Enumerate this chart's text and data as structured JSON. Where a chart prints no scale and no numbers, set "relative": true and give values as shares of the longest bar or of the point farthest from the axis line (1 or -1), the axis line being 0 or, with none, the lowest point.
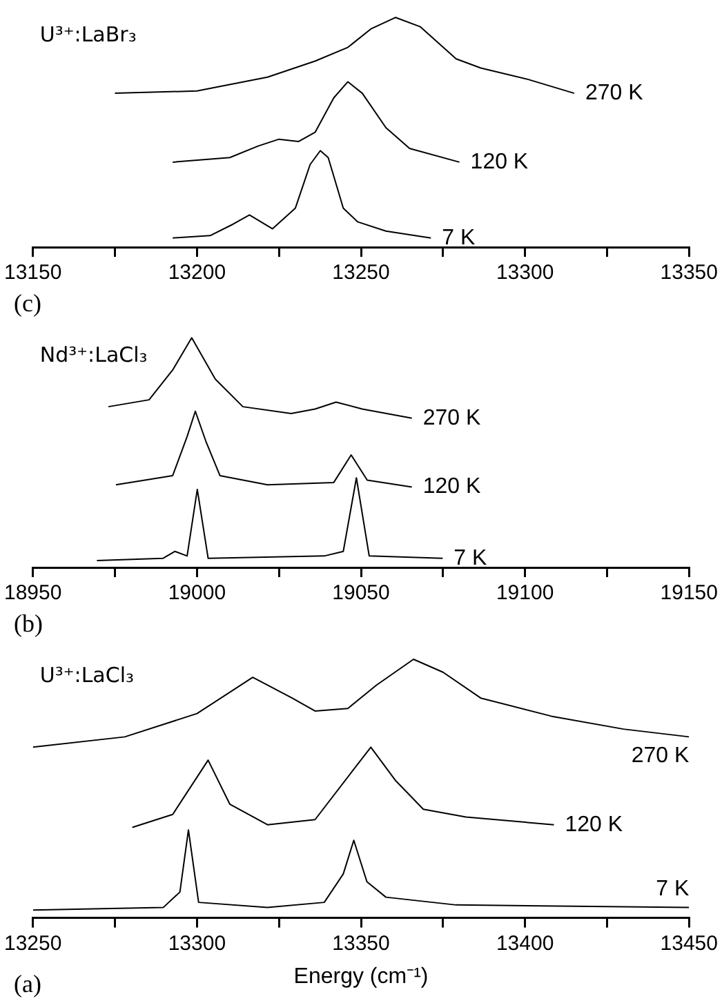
{
  "chart_data": [
    {
      "type": "line",
      "relative": true,
      "grid": false,
      "legend": false,
      "tick_labels": "x",
      "annotations": [
        "U³⁺:LaBr₃",
        "(c)"
      ],
      "xlim": [
        13150,
        13350
      ],
      "xticks": [
        13150,
        {
          "value": 13175,
          "label": null
        },
        13200,
        {
          "value": 13225,
          "label": null
        },
        13250,
        {
          "value": 13275,
          "label": null
        },
        13300,
        {
          "value": 13325,
          "label": null
        },
        13350
      ],
      "series": [
        {
          "name": "270 K",
          "color": "#000000",
          "x": [
            13175,
            13200,
            13221.5,
            13236,
            13246,
            13253,
            13260.5,
            13268,
            13279,
            13286.5,
            13301,
            13315
          ],
          "values": [
            0.67,
            0.68,
            0.74,
            0.81,
            0.87,
            0.95,
            1.0,
            0.96,
            0.82,
            0.78,
            0.73,
            0.67
          ]
        },
        {
          "name": "120 K",
          "color": "#000000",
          "x": [
            13192.6,
            13210,
            13218.6,
            13225,
            13231,
            13236,
            13241.7,
            13246,
            13250.4,
            13257.6,
            13264.8,
            13280
          ],
          "values": [
            0.37,
            0.39,
            0.44,
            0.47,
            0.46,
            0.5,
            0.65,
            0.72,
            0.67,
            0.52,
            0.43,
            0.37
          ]
        },
        {
          "name": "7 K",
          "color": "#000000",
          "x": [
            13192.6,
            13204,
            13211,
            13216,
            13223,
            13230,
            13234.5,
            13237.6,
            13240,
            13244.6,
            13249,
            13257.6,
            13271.3
          ],
          "values": [
            0.04,
            0.05,
            0.1,
            0.14,
            0.08,
            0.17,
            0.36,
            0.42,
            0.39,
            0.17,
            0.11,
            0.07,
            0.04
          ]
        }
      ]
    },
    {
      "type": "line",
      "relative": true,
      "grid": false,
      "legend": false,
      "tick_labels": "x",
      "annotations": [
        "Nd³⁺:LaCl₃",
        "(b)"
      ],
      "xlim": [
        18950,
        19150
      ],
      "xticks": [
        18950,
        {
          "value": 18975,
          "label": null
        },
        19000,
        {
          "value": 19025,
          "label": null
        },
        19050,
        {
          "value": 19075,
          "label": null
        },
        19100,
        {
          "value": 19125,
          "label": null
        },
        19150
      ],
      "series": [
        {
          "name": "270 K",
          "color": "#000000",
          "x": [
            18973,
            18985.4,
            18992.6,
            18998.4,
            19005.6,
            19014,
            19028.7,
            19036,
            19042.4,
            19050.4,
            19065.5
          ],
          "values": [
            0.7,
            0.73,
            0.86,
            1.0,
            0.82,
            0.7,
            0.67,
            0.69,
            0.72,
            0.69,
            0.65
          ]
        },
        {
          "name": "120 K",
          "color": "#000000",
          "x": [
            18975.3,
            18992.6,
            18997,
            18999.5,
            19002.7,
            19007,
            19021.5,
            19041.7,
            19047,
            19051.9,
            19065.5
          ],
          "values": [
            0.36,
            0.4,
            0.57,
            0.68,
            0.55,
            0.4,
            0.36,
            0.37,
            0.49,
            0.38,
            0.35
          ]
        },
        {
          "name": "7 K",
          "color": "#000000",
          "x": [
            18969.5,
            18989.7,
            18993.3,
            18997,
            19000.1,
            19003.4,
            19038.8,
            19044.6,
            19048.6,
            19052.5,
            19074.9
          ],
          "values": [
            0.03,
            0.04,
            0.07,
            0.05,
            0.34,
            0.04,
            0.05,
            0.07,
            0.39,
            0.05,
            0.04
          ]
        }
      ]
    },
    {
      "type": "line",
      "relative": true,
      "grid": false,
      "legend": false,
      "tick_labels": "x",
      "xlabel": "Energy (cm⁻¹)",
      "annotations": [
        "U³⁺:LaCl₃",
        "(a)"
      ],
      "xlim": [
        13250,
        13450
      ],
      "xticks": [
        13250,
        {
          "value": 13275,
          "label": null
        },
        13300,
        {
          "value": 13325,
          "label": null
        },
        13350,
        {
          "value": 13375,
          "label": null
        },
        13400,
        {
          "value": 13425,
          "label": null
        },
        13450
      ],
      "series": [
        {
          "name": "270 K",
          "color": "#000000",
          "x": [
            13250,
            13278,
            13300,
            13317,
            13329,
            13336,
            13346,
            13354.7,
            13366,
            13375,
            13386.5,
            13408,
            13430,
            13450
          ],
          "values": [
            0.66,
            0.7,
            0.79,
            0.93,
            0.85,
            0.8,
            0.81,
            0.9,
            1.0,
            0.95,
            0.85,
            0.78,
            0.73,
            0.7
          ]
        },
        {
          "name": "120 K",
          "color": "#000000",
          "x": [
            13280.3,
            13292.6,
            13303.4,
            13310,
            13321.5,
            13336,
            13347.5,
            13353,
            13360.6,
            13369,
            13382,
            13408.8
          ],
          "values": [
            0.35,
            0.4,
            0.61,
            0.44,
            0.36,
            0.38,
            0.57,
            0.66,
            0.53,
            0.42,
            0.39,
            0.36
          ]
        },
        {
          "name": "7 K",
          "color": "#000000",
          "x": [
            13250,
            13289.7,
            13294.8,
            13297.4,
            13300.5,
            13321.5,
            13338.8,
            13344.6,
            13347.8,
            13351.8,
            13357.6,
            13379,
            13450
          ],
          "values": [
            0.03,
            0.04,
            0.1,
            0.34,
            0.06,
            0.04,
            0.06,
            0.17,
            0.3,
            0.14,
            0.08,
            0.05,
            0.04
          ]
        }
      ]
    }
  ]
}
